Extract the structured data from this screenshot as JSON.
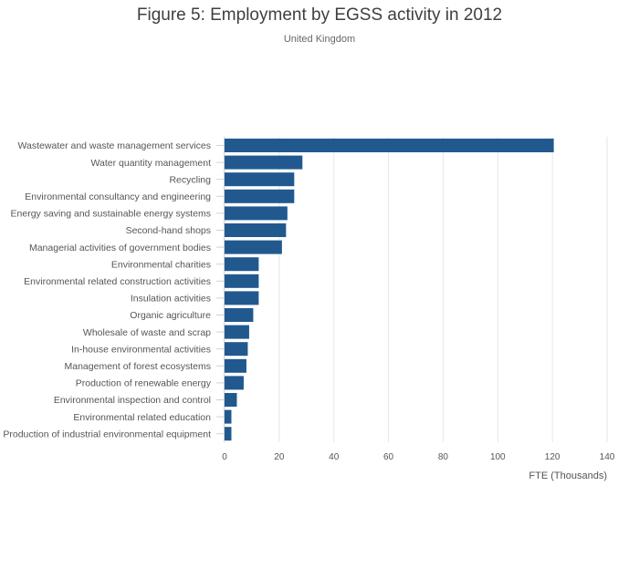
{
  "chart_data": {
    "type": "bar",
    "orientation": "horizontal",
    "title": "Figure 5: Employment by EGSS activity in 2012",
    "subtitle": "United Kingdom",
    "xlabel": "FTE (Thousands)",
    "ylabel": "",
    "xlim": [
      0,
      140
    ],
    "xticks": [
      0,
      20,
      40,
      60,
      80,
      100,
      120,
      140
    ],
    "grid": true,
    "bar_color": "#21598f",
    "categories": [
      "Wastewater and waste management services",
      "Water quantity management",
      "Recycling",
      "Environmental consultancy and engineering",
      "Energy saving and sustainable energy systems",
      "Second-hand shops",
      "Managerial activities of government bodies",
      "Environmental charities",
      "Environmental related construction activities",
      "Insulation activities",
      "Organic agriculture",
      "Wholesale of waste and scrap",
      "In-house environmental activities",
      "Management of forest ecosystems",
      "Production of renewable energy",
      "Environmental inspection and control",
      "Environmental related education",
      "Production of industrial environmental equipment"
    ],
    "values": [
      120.5,
      28.5,
      25.5,
      25.5,
      23,
      22.5,
      21,
      12.5,
      12.5,
      12.5,
      10.5,
      9,
      8.5,
      8,
      7,
      4.5,
      2.5,
      2.5
    ]
  }
}
